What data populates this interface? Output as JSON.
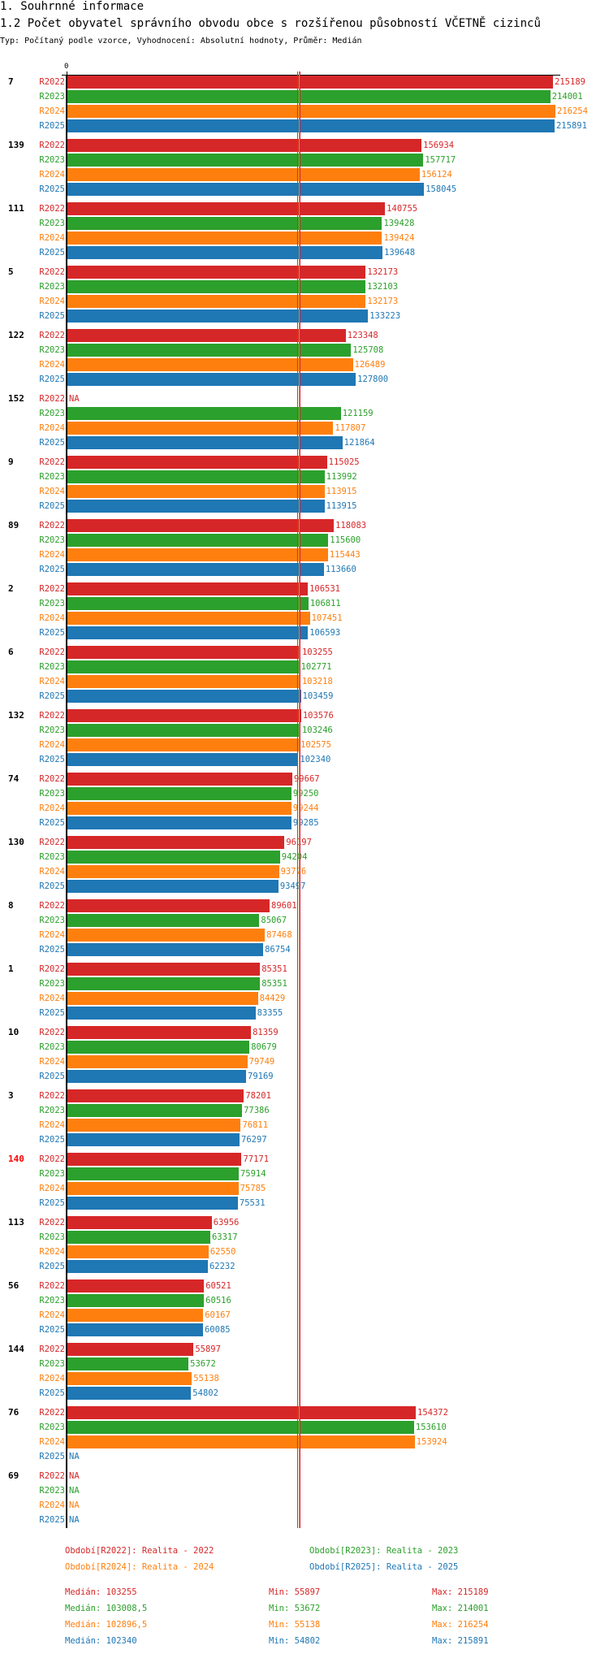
{
  "header": {
    "section": "1. Souhrnné informace",
    "title": "1.2 Počet obyvatel správního obvodu obce s rozšířenou působností VČETNĚ cizinců",
    "subtitle": "Typ: Počítaný podle vzorce, Vyhodnocení: Absolutní hodnoty, Průměr: Medián"
  },
  "chart_data": {
    "type": "bar",
    "orientation": "horizontal",
    "title": "1.2 Počet obyvatel správního obvodu obce s rozšířenou působností VČETNĚ cizinců",
    "x_tick_label": "0",
    "xlim": [
      0,
      216254
    ],
    "na_label": "NA",
    "series_names": [
      "R2022",
      "R2023",
      "R2024",
      "R2025"
    ],
    "colors": [
      "#d62728",
      "#2ca02c",
      "#ff7f0e",
      "#1f77b4"
    ],
    "highlight_color": "#ff0000",
    "groups": [
      {
        "label": "7",
        "values": [
          215189,
          214001,
          216254,
          215891
        ]
      },
      {
        "label": "139",
        "values": [
          156934,
          157717,
          156124,
          158045
        ]
      },
      {
        "label": "111",
        "values": [
          140755,
          139428,
          139424,
          139648
        ]
      },
      {
        "label": "5",
        "values": [
          132173,
          132103,
          132173,
          133223
        ]
      },
      {
        "label": "122",
        "values": [
          123348,
          125708,
          126489,
          127800
        ]
      },
      {
        "label": "152",
        "values": [
          null,
          121159,
          117807,
          121864
        ]
      },
      {
        "label": "9",
        "values": [
          115025,
          113992,
          113915,
          113915
        ]
      },
      {
        "label": "89",
        "values": [
          118083,
          115600,
          115443,
          113660
        ]
      },
      {
        "label": "2",
        "values": [
          106531,
          106811,
          107451,
          106593
        ]
      },
      {
        "label": "6",
        "values": [
          103255,
          102771,
          103218,
          103459
        ]
      },
      {
        "label": "132",
        "values": [
          103576,
          103246,
          102575,
          102340
        ]
      },
      {
        "label": "74",
        "values": [
          99667,
          99250,
          99244,
          99285
        ]
      },
      {
        "label": "130",
        "values": [
          96197,
          94204,
          93776,
          93497
        ]
      },
      {
        "label": "8",
        "values": [
          89601,
          85067,
          87468,
          86754
        ]
      },
      {
        "label": "1",
        "values": [
          85351,
          85351,
          84429,
          83355
        ]
      },
      {
        "label": "10",
        "values": [
          81359,
          80679,
          79749,
          79169
        ]
      },
      {
        "label": "3",
        "values": [
          78201,
          77386,
          76811,
          76297
        ]
      },
      {
        "label": "140",
        "values": [
          77171,
          75914,
          75785,
          75531
        ],
        "highlight": true
      },
      {
        "label": "113",
        "values": [
          63956,
          63317,
          62550,
          62232
        ]
      },
      {
        "label": "56",
        "values": [
          60521,
          60516,
          60167,
          60085
        ]
      },
      {
        "label": "144",
        "values": [
          55897,
          53672,
          55138,
          54802
        ]
      },
      {
        "label": "76",
        "values": [
          154372,
          153610,
          153924,
          null
        ]
      },
      {
        "label": "69",
        "values": [
          null,
          null,
          null,
          null
        ]
      }
    ],
    "legend": [
      {
        "label": "Období[R2022]:",
        "desc": "Realita - 2022"
      },
      {
        "label": "Období[R2023]:",
        "desc": "Realita - 2023"
      },
      {
        "label": "Období[R2024]:",
        "desc": "Realita - 2024"
      },
      {
        "label": "Období[R2025]:",
        "desc": "Realita - 2025"
      }
    ],
    "stats": [
      {
        "median_label": "Medián:",
        "median": "103255",
        "median_value": 103255,
        "min_label": "Min:",
        "min": "55897",
        "max_label": "Max:",
        "max": "215189"
      },
      {
        "median_label": "Medián:",
        "median": "103008,5",
        "median_value": 103008.5,
        "min_label": "Min:",
        "min": "53672",
        "max_label": "Max:",
        "max": "214001"
      },
      {
        "median_label": "Medián:",
        "median": "102896,5",
        "median_value": 102896.5,
        "min_label": "Min:",
        "min": "55138",
        "max_label": "Max:",
        "max": "216254"
      },
      {
        "median_label": "Medián:",
        "median": "102340",
        "median_value": 102340,
        "min_label": "Min:",
        "min": "54802",
        "max_label": "Max:",
        "max": "215891"
      }
    ]
  }
}
